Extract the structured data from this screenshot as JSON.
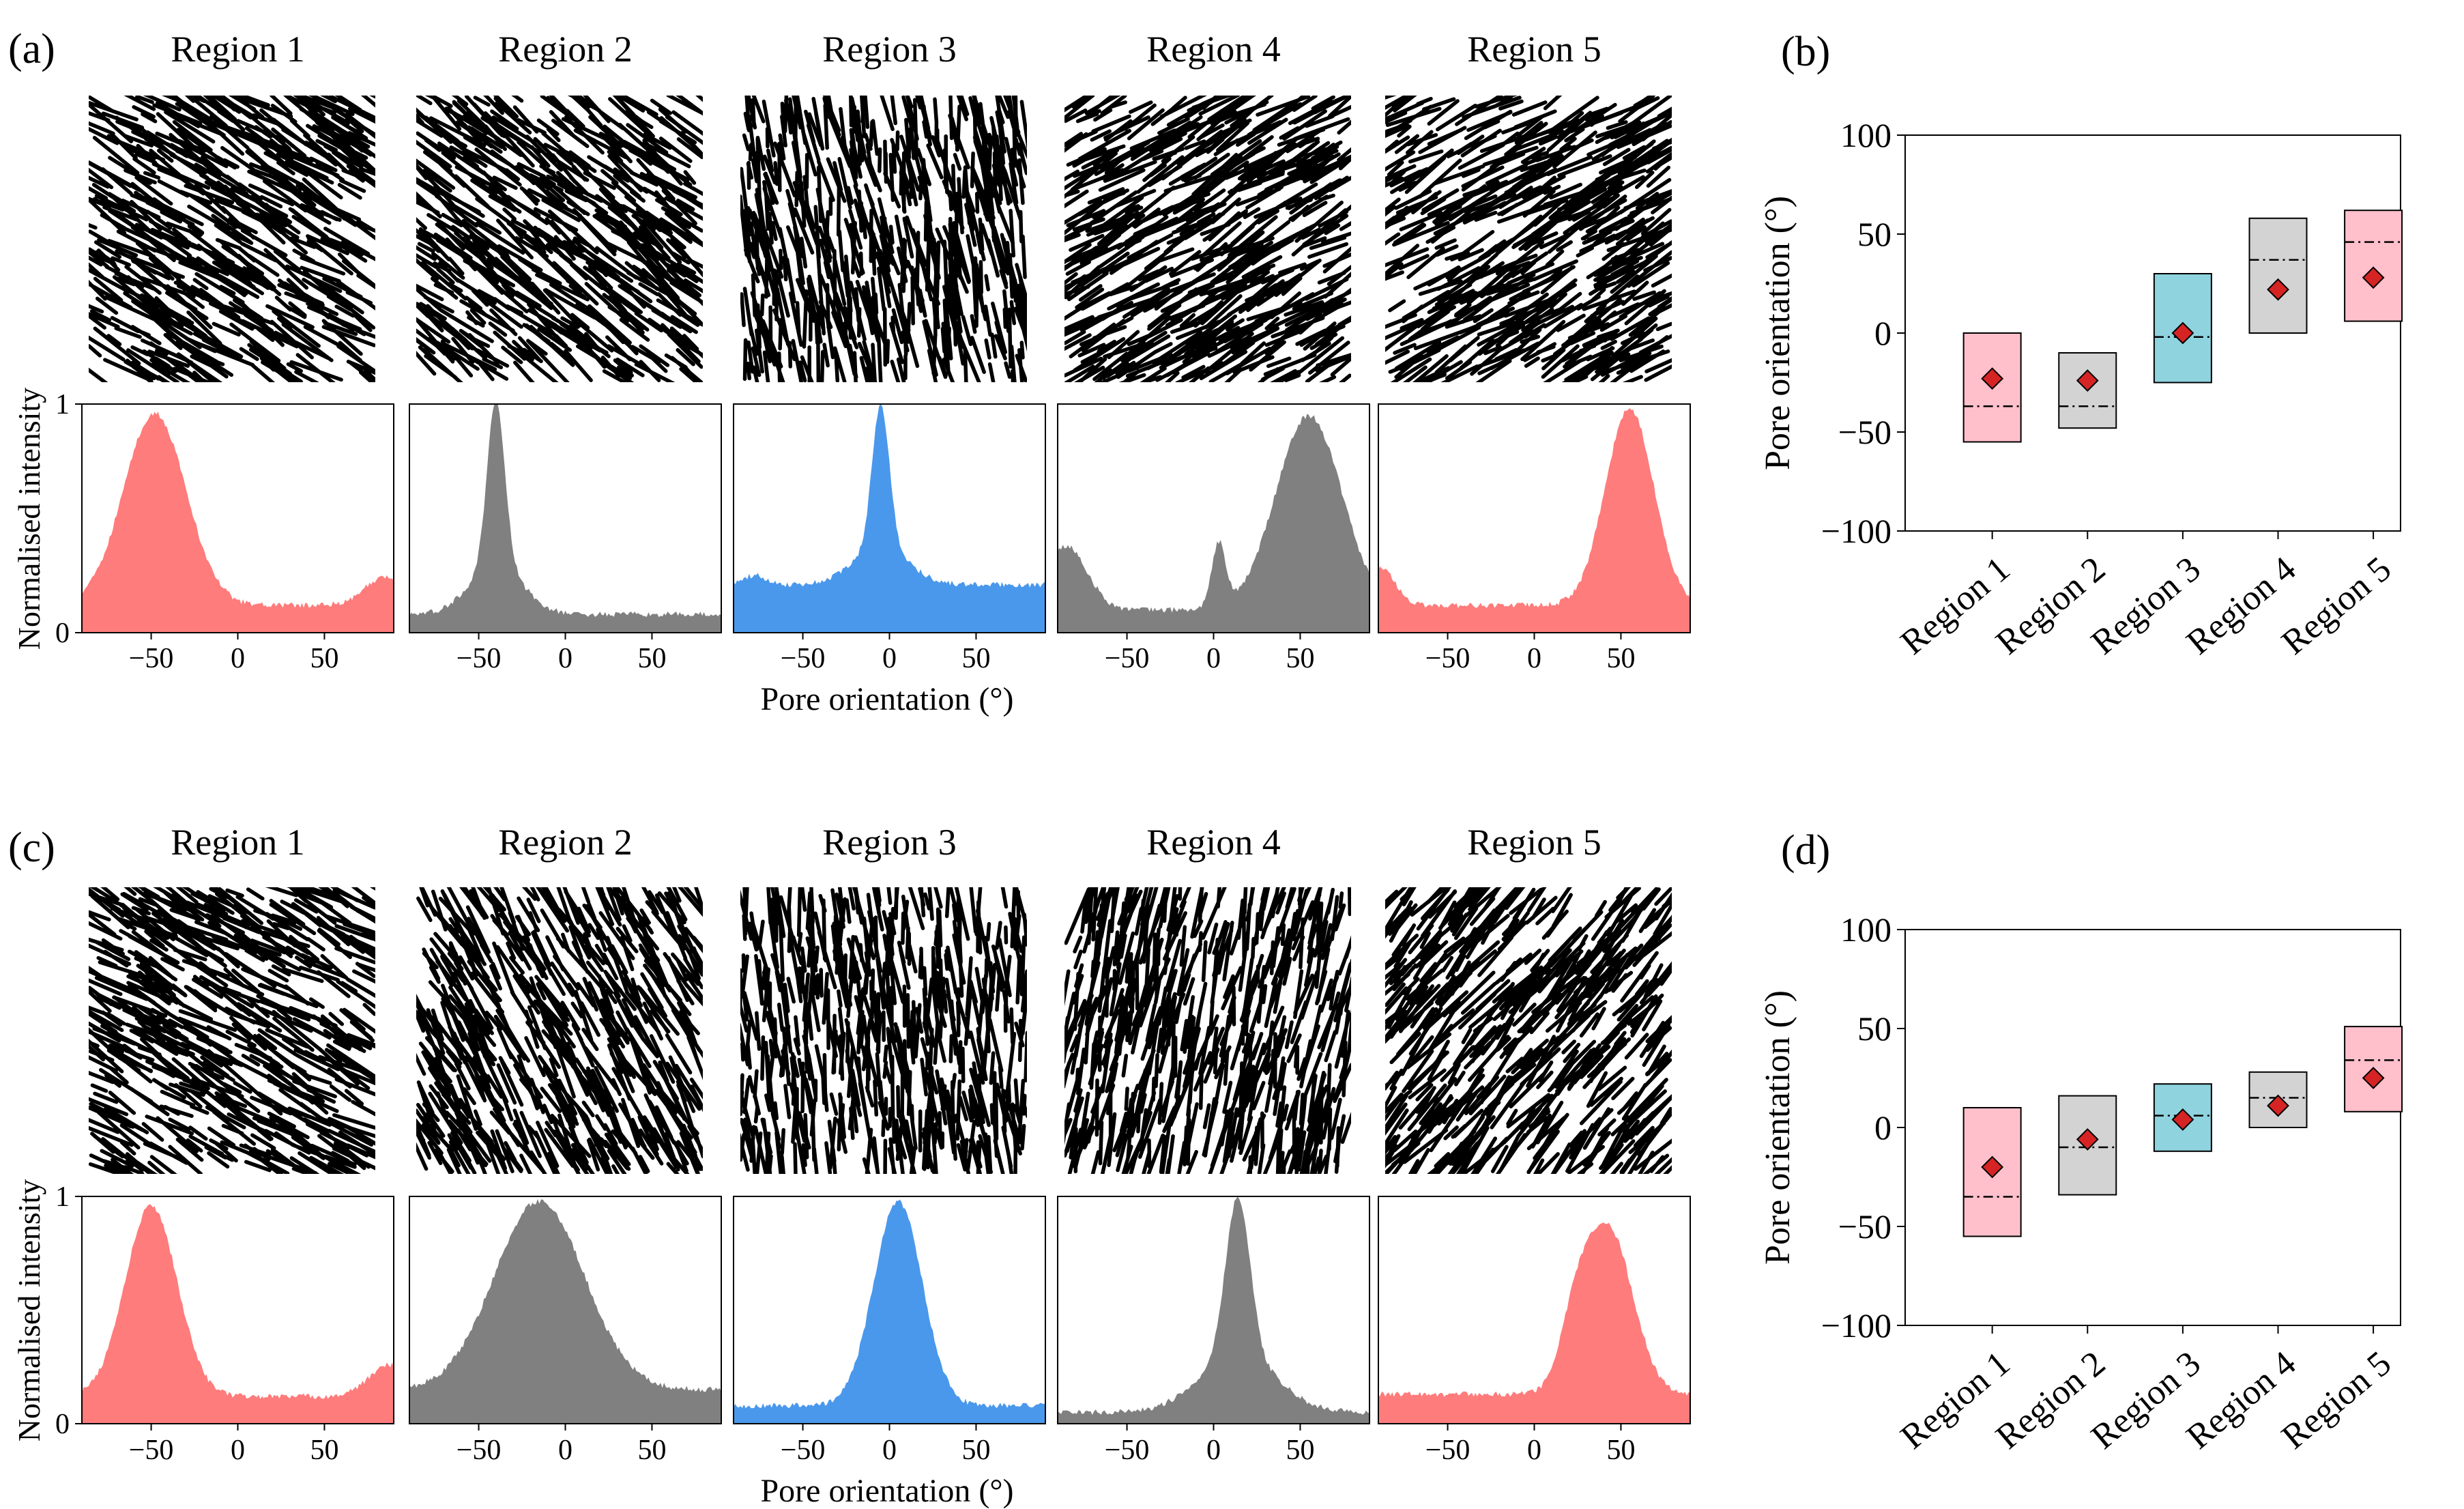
{
  "figure": {
    "panel_labels": [
      "(a)",
      "(b)",
      "(c)",
      "(d)"
    ],
    "colors": {
      "pink": "#ff7c7c",
      "grey": "#808080",
      "blue": "#4a98ec",
      "box_pink": "#ffc0cb",
      "box_grey": "#d3d3d3",
      "box_blue": "#8fd3df",
      "marker": "#d62424"
    }
  },
  "chart_data": [
    {
      "panel": "(a)",
      "type": "histogram",
      "ylabel": "Normalised intensity",
      "xlabel": "Pore orientation (°)",
      "xlim": [
        -90,
        90
      ],
      "ylim": [
        0,
        1
      ],
      "xticks": [
        "−50",
        "0",
        "50"
      ],
      "yticks": [
        "0",
        "1"
      ],
      "regions": [
        {
          "name": "Region 1",
          "color": "pink",
          "image_orientation_deg": -32,
          "shape": {
            "base": 0.12,
            "peaks": [
              {
                "mu": -48,
                "sigma": 18,
                "amp": 0.84
              },
              {
                "mu": 85,
                "sigma": 12,
                "amp": 0.12
              }
            ]
          }
        },
        {
          "name": "Region 2",
          "color": "grey",
          "image_orientation_deg": -38,
          "shape": {
            "base": 0.08,
            "peaks": [
              {
                "mu": -40,
                "sigma": 5,
                "amp": 0.72
              },
              {
                "mu": -40,
                "sigma": 15,
                "amp": 0.22
              }
            ]
          }
        },
        {
          "name": "Region 3",
          "color": "blue",
          "image_orientation_deg": -80,
          "shape": {
            "base": 0.21,
            "peaks": [
              {
                "mu": -5,
                "sigma": 5,
                "amp": 0.63
              },
              {
                "mu": -5,
                "sigma": 16,
                "amp": 0.16
              },
              {
                "mu": -78,
                "sigma": 7,
                "amp": 0.04
              }
            ]
          }
        },
        {
          "name": "Region 4",
          "color": "grey",
          "image_orientation_deg": 30,
          "shape": {
            "base": 0.1,
            "peaks": [
              {
                "mu": 55,
                "sigma": 19,
                "amp": 0.85
              },
              {
                "mu": 3,
                "sigma": 4,
                "amp": 0.28
              },
              {
                "mu": -85,
                "sigma": 12,
                "amp": 0.28
              }
            ]
          }
        },
        {
          "name": "Region 5",
          "color": "pink",
          "image_orientation_deg": 30,
          "shape": {
            "base": 0.12,
            "peaks": [
              {
                "mu": 55,
                "sigma": 14,
                "amp": 0.86
              },
              {
                "mu": -88,
                "sigma": 8,
                "amp": 0.16
              }
            ]
          }
        }
      ]
    },
    {
      "panel": "(b)",
      "type": "box",
      "ylabel": "Pore orientation (°)",
      "ylim": [
        -100,
        100
      ],
      "yticks": [
        "100",
        "50",
        "0",
        "−50",
        "−100"
      ],
      "categories": [
        "Region 1",
        "Region 2",
        "Region 3",
        "Region 4",
        "Region 5"
      ],
      "boxes": [
        {
          "low": -55,
          "high": 0,
          "median": -37,
          "mean": -23,
          "color": "box_pink"
        },
        {
          "low": -48,
          "high": -10,
          "median": -37,
          "mean": -24,
          "color": "box_grey"
        },
        {
          "low": -25,
          "high": 30,
          "median": -2,
          "mean": 0,
          "color": "box_blue"
        },
        {
          "low": 0,
          "high": 58,
          "median": 37,
          "mean": 22,
          "color": "box_grey"
        },
        {
          "low": 6,
          "high": 62,
          "median": 46,
          "mean": 28,
          "color": "box_pink"
        }
      ]
    },
    {
      "panel": "(c)",
      "type": "histogram",
      "ylabel": "Normalised intensity",
      "xlabel": "Pore orientation (°)",
      "xlim": [
        -90,
        90
      ],
      "ylim": [
        0,
        1
      ],
      "xticks": [
        "−50",
        "0",
        "50"
      ],
      "yticks": [
        "0",
        "1"
      ],
      "regions": [
        {
          "name": "Region 1",
          "color": "pink",
          "image_orientation_deg": -30,
          "shape": {
            "base": 0.12,
            "peaks": [
              {
                "mu": -50,
                "sigma": 15,
                "amp": 0.84
              },
              {
                "mu": 88,
                "sigma": 12,
                "amp": 0.14
              }
            ]
          }
        },
        {
          "name": "Region 2",
          "color": "grey",
          "image_orientation_deg": -60,
          "shape": {
            "base": 0.15,
            "peaks": [
              {
                "mu": -15,
                "sigma": 26,
                "amp": 0.83
              }
            ]
          }
        },
        {
          "name": "Region 3",
          "color": "blue",
          "image_orientation_deg": -85,
          "shape": {
            "base": 0.08,
            "peaks": [
              {
                "mu": 5,
                "sigma": 14,
                "amp": 0.9
              }
            ]
          }
        },
        {
          "name": "Region 4",
          "color": "grey",
          "image_orientation_deg": 78,
          "shape": {
            "base": 0.05,
            "peaks": [
              {
                "mu": 14,
                "sigma": 7,
                "amp": 0.7
              },
              {
                "mu": 14,
                "sigma": 22,
                "amp": 0.25
              }
            ]
          }
        },
        {
          "name": "Region 5",
          "color": "pink",
          "image_orientation_deg": 50,
          "shape": {
            "base": 0.13,
            "peaks": [
              {
                "mu": 43,
                "sigma": 14,
                "amp": 0.72
              },
              {
                "mu": 24,
                "sigma": 9,
                "amp": 0.25
              }
            ]
          }
        }
      ]
    },
    {
      "panel": "(d)",
      "type": "box",
      "ylabel": "Pore orientation (°)",
      "ylim": [
        -100,
        100
      ],
      "yticks": [
        "100",
        "50",
        "0",
        "−50",
        "−100"
      ],
      "categories": [
        "Region 1",
        "Region 2",
        "Region 3",
        "Region 4",
        "Region 5"
      ],
      "boxes": [
        {
          "low": -55,
          "high": 10,
          "median": -35,
          "mean": -20,
          "color": "box_pink"
        },
        {
          "low": -34,
          "high": 16,
          "median": -10,
          "mean": -6,
          "color": "box_grey"
        },
        {
          "low": -12,
          "high": 22,
          "median": 6,
          "mean": 4,
          "color": "box_blue"
        },
        {
          "low": 0,
          "high": 28,
          "median": 15,
          "mean": 11,
          "color": "box_grey"
        },
        {
          "low": 8,
          "high": 51,
          "median": 34,
          "mean": 25,
          "color": "box_pink"
        }
      ]
    }
  ]
}
